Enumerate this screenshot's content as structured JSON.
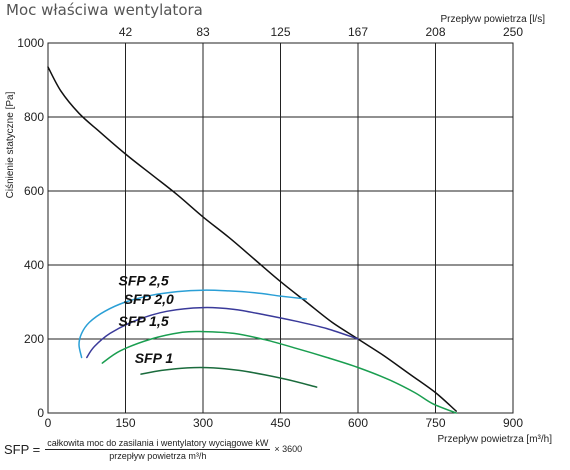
{
  "title": "Moc właściwa wentylatora",
  "chart_data": {
    "type": "line",
    "title": "Moc właściwa wentylatora",
    "xlabel": "Przepływ powietrza [m³/h]",
    "ylabel": "Ciśnienie statyczne [Pa]",
    "x2label": "Przepływ powietrza [l/s]",
    "xlim": [
      0,
      900
    ],
    "ylim": [
      0,
      1000
    ],
    "x_ticks": [
      "0",
      "150",
      "300",
      "450",
      "600",
      "750",
      "900"
    ],
    "y_ticks": [
      "0",
      "200",
      "400",
      "600",
      "800",
      "1000"
    ],
    "x2_ticks": [
      {
        "label": "42",
        "x": 150
      },
      {
        "label": "83",
        "x": 300
      },
      {
        "label": "125",
        "x": 450
      },
      {
        "label": "167",
        "x": 600
      },
      {
        "label": "208",
        "x": 750
      },
      {
        "label": "250",
        "x": 900
      }
    ],
    "grid": true,
    "series": [
      {
        "color": "#111111",
        "points": [
          [
            0,
            935
          ],
          [
            25,
            870
          ],
          [
            60,
            810
          ],
          [
            100,
            760
          ],
          [
            150,
            700
          ],
          [
            200,
            645
          ],
          [
            250,
            590
          ],
          [
            300,
            530
          ],
          [
            350,
            475
          ],
          [
            400,
            415
          ],
          [
            450,
            355
          ],
          [
            500,
            300
          ],
          [
            550,
            245
          ],
          [
            600,
            200
          ],
          [
            650,
            155
          ],
          [
            700,
            105
          ],
          [
            750,
            55
          ],
          [
            790,
            5
          ]
        ]
      },
      {
        "name": "SFP 2,5",
        "color": "#2a9fd6",
        "points": [
          [
            65,
            150
          ],
          [
            60,
            185
          ],
          [
            65,
            215
          ],
          [
            80,
            245
          ],
          [
            110,
            275
          ],
          [
            150,
            300
          ],
          [
            200,
            318
          ],
          [
            250,
            328
          ],
          [
            300,
            332
          ],
          [
            350,
            330
          ],
          [
            400,
            325
          ],
          [
            450,
            316
          ],
          [
            500,
            308
          ]
        ]
      },
      {
        "name": "SFP 2,0",
        "color": "#3a3a9a",
        "points": [
          [
            75,
            150
          ],
          [
            90,
            180
          ],
          [
            120,
            215
          ],
          [
            170,
            250
          ],
          [
            230,
            275
          ],
          [
            300,
            285
          ],
          [
            360,
            280
          ],
          [
            420,
            265
          ],
          [
            480,
            248
          ],
          [
            540,
            228
          ],
          [
            600,
            200
          ]
        ]
      },
      {
        "name": "SFP 1,5",
        "color": "#1a9e50",
        "points": [
          [
            105,
            135
          ],
          [
            140,
            168
          ],
          [
            200,
            200
          ],
          [
            260,
            218
          ],
          [
            300,
            220
          ],
          [
            360,
            215
          ],
          [
            420,
            198
          ],
          [
            480,
            175
          ],
          [
            540,
            150
          ],
          [
            600,
            123
          ],
          [
            660,
            90
          ],
          [
            710,
            55
          ],
          [
            745,
            25
          ],
          [
            790,
            0
          ]
        ]
      },
      {
        "name": "SFP 1",
        "color": "#1a6b3c",
        "points": [
          [
            180,
            105
          ],
          [
            220,
            115
          ],
          [
            270,
            122
          ],
          [
            320,
            122
          ],
          [
            370,
            115
          ],
          [
            420,
            103
          ],
          [
            470,
            88
          ],
          [
            520,
            70
          ]
        ]
      }
    ],
    "curve_labels": [
      {
        "text": "SFP 2,5",
        "x": 185,
        "y": 345
      },
      {
        "text": "SFP 2,0",
        "x": 195,
        "y": 295
      },
      {
        "text": "SFP 1,5",
        "x": 185,
        "y": 235
      },
      {
        "text": "SFP 1",
        "x": 205,
        "y": 135
      }
    ]
  },
  "formula": {
    "lhs": "SFP =",
    "numerator": "całkowita moc do zasilania i wentylatory wyciągowe kW",
    "denominator": "przepływ powietrza m³/h",
    "multiplier": "× 3600"
  }
}
